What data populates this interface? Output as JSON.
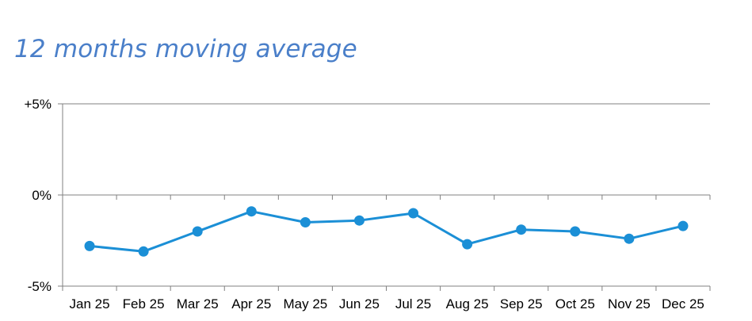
{
  "chart_data": {
    "type": "line",
    "title": "12 months moving average",
    "xlabel": "",
    "ylabel": "",
    "categories": [
      "Jan 25",
      "Feb 25",
      "Mar 25",
      "Apr 25",
      "May 25",
      "Jun 25",
      "Jul 25",
      "Aug 25",
      "Sep 25",
      "Oct 25",
      "Nov 25",
      "Dec 25"
    ],
    "series": [
      {
        "values": [
          -2.8,
          -3.1,
          -2.0,
          -0.9,
          -1.5,
          -1.4,
          -1.0,
          -2.7,
          -1.9,
          -2.0,
          -2.4,
          -1.7
        ]
      }
    ],
    "ylim": [
      -5,
      5
    ],
    "yticks": [
      {
        "value": 5,
        "label": "+5%"
      },
      {
        "value": 0,
        "label": "0%"
      },
      {
        "value": -5,
        "label": "-5%"
      }
    ],
    "line_color": "#1b8fd6",
    "axis_color": "#808080",
    "grid": true,
    "legend": "none"
  }
}
